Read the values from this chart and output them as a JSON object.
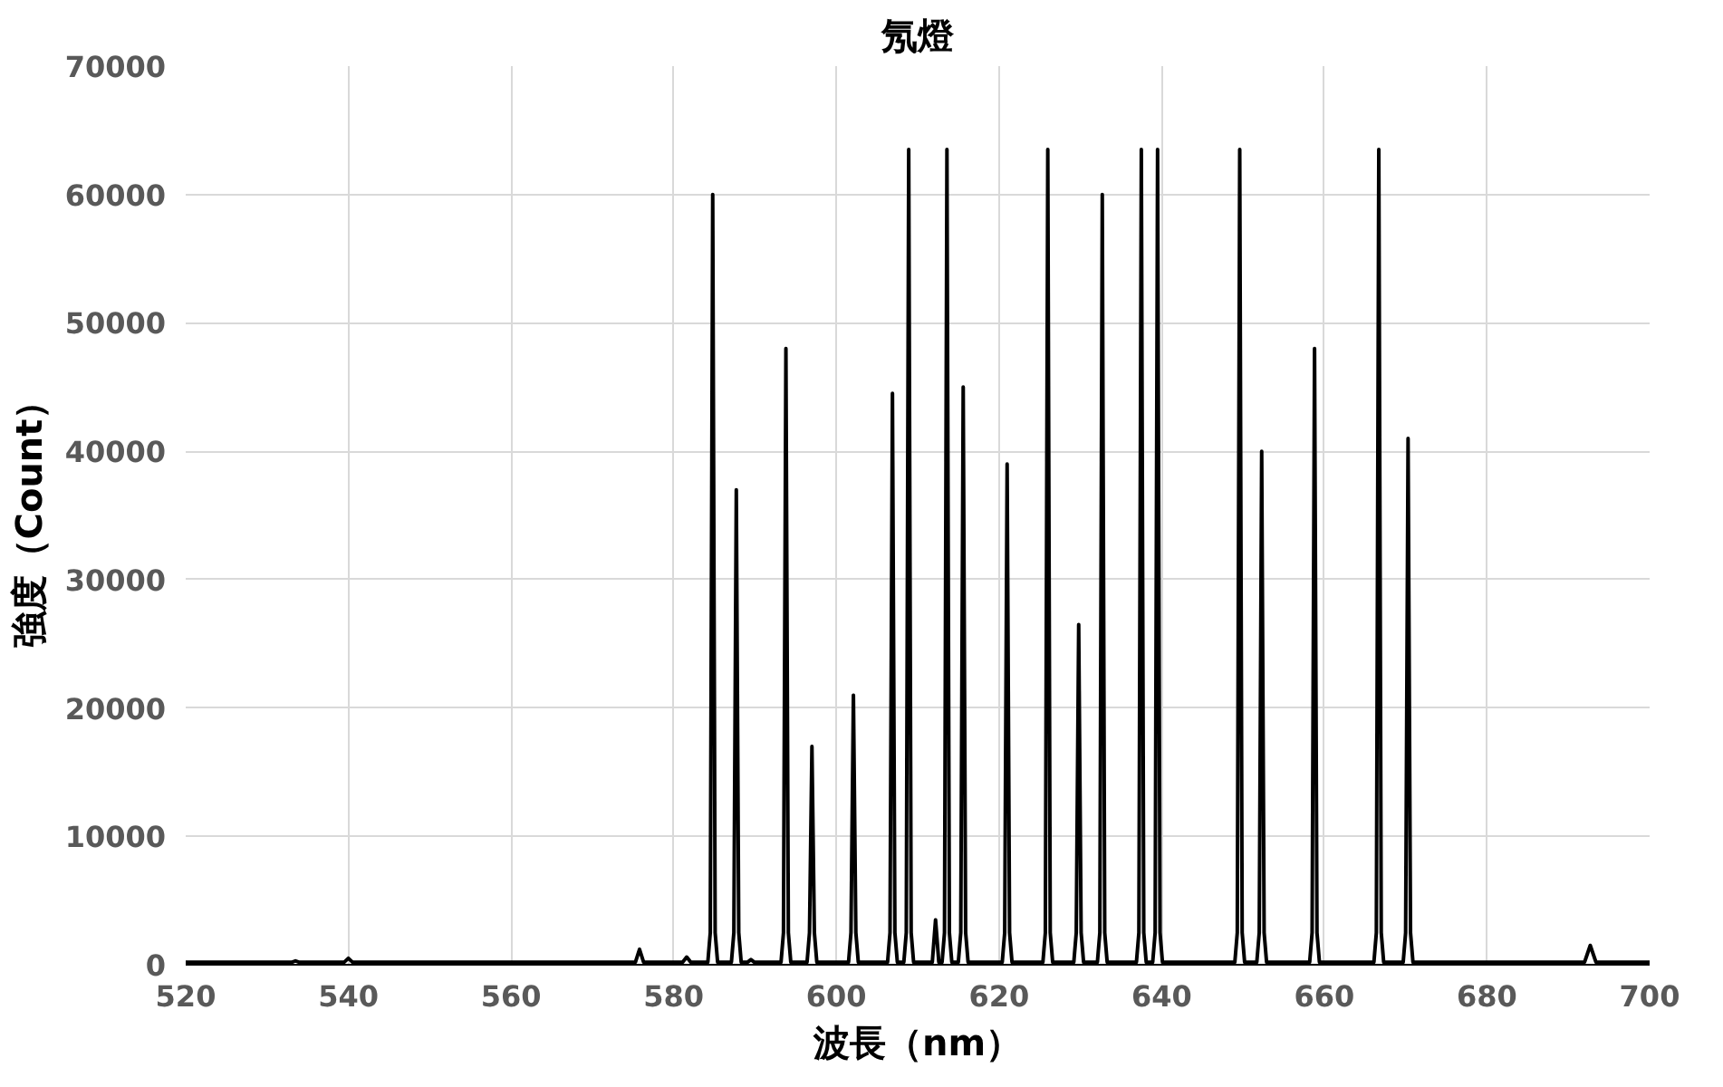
{
  "chart_data": {
    "type": "line",
    "title": "氖燈",
    "xlabel": "波長（nm）",
    "ylabel": "強度（Count）",
    "xlim": [
      520,
      700
    ],
    "xticks": [
      520,
      540,
      560,
      580,
      600,
      620,
      640,
      660,
      680,
      700
    ],
    "ylim": [
      0,
      70000
    ],
    "yticks": [
      0,
      10000,
      20000,
      30000,
      40000,
      50000,
      60000,
      70000
    ],
    "grid": true,
    "marker": "none",
    "line_style": "solid",
    "series": [
      {
        "color": "#000000",
        "x": [
          520,
          533.1,
          533.5,
          533.9,
          539.5,
          540,
          540.5,
          575.3,
          575.8,
          576.3,
          581.1,
          581.6,
          582.1,
          584.2,
          584.5,
          584.8,
          585.1,
          585.4,
          587.1,
          587.4,
          587.7,
          588.0,
          588.3,
          589.1,
          589.5,
          589.9,
          593.2,
          593.5,
          593.8,
          594.1,
          594.4,
          596.4,
          596.7,
          597.0,
          597.3,
          597.6,
          601.5,
          601.8,
          602.1,
          602.4,
          602.7,
          606.3,
          606.6,
          606.9,
          607.2,
          607.5,
          608.3,
          608.6,
          608.9,
          609.2,
          609.5,
          611.8,
          612.2,
          612.6,
          613.0,
          613.3,
          613.6,
          613.9,
          614.2,
          615.0,
          615.3,
          615.6,
          615.9,
          616.2,
          620.4,
          620.7,
          621.0,
          621.3,
          621.6,
          625.4,
          625.7,
          626.0,
          626.3,
          626.6,
          629.2,
          629.5,
          629.8,
          630.1,
          630.4,
          632.1,
          632.4,
          632.7,
          633.0,
          633.3,
          636.9,
          637.2,
          637.5,
          637.8,
          638.1,
          638.9,
          639.2,
          639.5,
          639.8,
          640.1,
          649.0,
          649.3,
          649.6,
          649.9,
          650.2,
          651.7,
          652.0,
          652.3,
          652.6,
          652.9,
          658.2,
          658.5,
          658.8,
          659.1,
          659.4,
          666.1,
          666.4,
          666.7,
          667.0,
          667.3,
          669.7,
          670.0,
          670.3,
          670.6,
          670.9,
          692.0,
          692.7,
          693.4,
          700
        ],
        "values": [
          200,
          200,
          300,
          200,
          200,
          500,
          200,
          200,
          1200,
          200,
          200,
          600,
          200,
          200,
          2500,
          60000,
          2500,
          200,
          200,
          2500,
          37000,
          2500,
          200,
          200,
          400,
          200,
          200,
          2500,
          48000,
          2500,
          200,
          200,
          2500,
          17000,
          2500,
          200,
          200,
          2500,
          21000,
          2500,
          200,
          200,
          2500,
          44500,
          2500,
          200,
          200,
          2500,
          63500,
          2500,
          200,
          200,
          3500,
          200,
          200,
          2500,
          63500,
          2500,
          200,
          200,
          2500,
          45000,
          2500,
          200,
          200,
          2500,
          39000,
          2500,
          200,
          200,
          2500,
          63500,
          2500,
          200,
          200,
          2500,
          26500,
          2500,
          200,
          200,
          2500,
          60000,
          2500,
          200,
          200,
          2500,
          63500,
          2500,
          200,
          200,
          2500,
          63500,
          2500,
          200,
          200,
          2500,
          63500,
          2500,
          200,
          200,
          2500,
          40000,
          2500,
          200,
          200,
          2500,
          48000,
          2500,
          200,
          200,
          2500,
          63500,
          2500,
          200,
          200,
          2500,
          41000,
          2500,
          200,
          200,
          1500,
          200,
          200
        ]
      }
    ]
  }
}
